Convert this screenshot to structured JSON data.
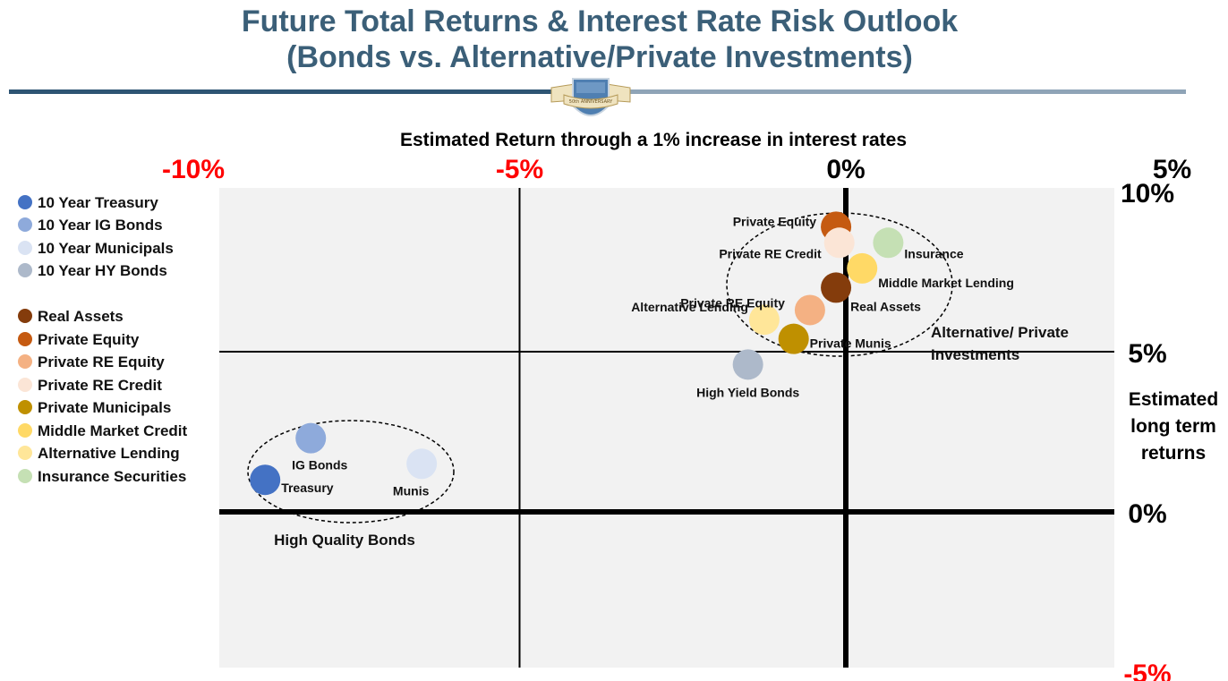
{
  "header": {
    "title_line1": "Future Total Returns & Interest Rate Risk Outlook",
    "title_line2": "(Bonds vs. Alternative/Private Investments)",
    "badge_text": "50th ANNIVERSARY"
  },
  "colors": {
    "title": "#3b5f78",
    "rule_dark": "#2e5573",
    "rule_light": "#8fa4b7",
    "x_tick_negative": "#ff0000",
    "plot_background": "#f2f2f2"
  },
  "legend": [
    {
      "label": "10 Year Treasury",
      "color": "#4472c4"
    },
    {
      "label": "10 Year IG Bonds",
      "color": "#8eaadb"
    },
    {
      "label": "10 Year Municipals",
      "color": "#dae3f3"
    },
    {
      "label": "10 Year HY Bonds",
      "color": "#adb9ca"
    },
    {
      "label": "Real Assets",
      "color": "#843c0c"
    },
    {
      "label": "Private Equity",
      "color": "#c55a11"
    },
    {
      "label": "Private RE Equity",
      "color": "#f4b183"
    },
    {
      "label": "Private RE Credit",
      "color": "#fbe5d6"
    },
    {
      "label": "Private Municipals",
      "color": "#bf9000"
    },
    {
      "label": "Middle Market Credit",
      "color": "#ffd966"
    },
    {
      "label": "Alternative Lending",
      "color": "#ffe699"
    },
    {
      "label": "Insurance Securities",
      "color": "#c5e0b4"
    }
  ],
  "side_label": [
    "Estimated",
    "long term",
    "returns"
  ],
  "chart_data": {
    "type": "scatter",
    "title": "Future Total Returns & Interest Rate Risk Outlook (Bonds vs. Alternative/Private Investments)",
    "xlabel": "Estimated Return through a 1% increase in interest rates",
    "ylabel": "Estimated long term returns",
    "xlim": [
      -9.6,
      4.3
    ],
    "ylim": [
      -5.0,
      10.0
    ],
    "x_ticks": [
      {
        "value": -10,
        "label": "-10%"
      },
      {
        "value": -5,
        "label": "-5%"
      },
      {
        "value": 0,
        "label": "0%"
      },
      {
        "value": 5,
        "label": "5%"
      }
    ],
    "y_ticks": [
      {
        "value": 10,
        "label": "10%"
      },
      {
        "value": 5,
        "label": "5%"
      },
      {
        "value": 0,
        "label": "0%"
      },
      {
        "value": -5,
        "label": "-5%"
      }
    ],
    "grid": true,
    "legend_position": "left",
    "points": [
      {
        "label": "Treasury",
        "series": "10 Year Treasury",
        "x": -8.9,
        "y": 1.0,
        "color": "#4472c4"
      },
      {
        "label": "IG Bonds",
        "series": "10 Year IG Bonds",
        "x": -8.2,
        "y": 2.3,
        "color": "#8eaadb"
      },
      {
        "label": "Munis",
        "series": "10 Year Municipals",
        "x": -6.5,
        "y": 1.5,
        "color": "#dae3f3"
      },
      {
        "label": "High Yield Bonds",
        "series": "10 Year HY Bonds",
        "x": -1.5,
        "y": 4.6,
        "color": "#adb9ca"
      },
      {
        "label": "Private Equity",
        "series": "Private Equity",
        "x": -0.15,
        "y": 8.9,
        "color": "#c55a11"
      },
      {
        "label": "Private RE Credit",
        "series": "Private RE Credit",
        "x": -0.1,
        "y": 8.4,
        "color": "#fbe5d6"
      },
      {
        "label": "Insurance",
        "series": "Insurance Securities",
        "x": 0.65,
        "y": 8.4,
        "color": "#c5e0b4"
      },
      {
        "label": "Middle Market Lending",
        "series": "Middle Market Credit",
        "x": 0.25,
        "y": 7.6,
        "color": "#ffd966"
      },
      {
        "label": "Real Assets",
        "series": "Real Assets",
        "x": -0.15,
        "y": 7.0,
        "color": "#843c0c"
      },
      {
        "label": "Private RE Equity",
        "series": "Private RE Equity",
        "x": -0.55,
        "y": 6.3,
        "color": "#f4b183"
      },
      {
        "label": "Alternative Lending",
        "series": "Alternative Lending",
        "x": -1.25,
        "y": 6.0,
        "color": "#ffe699"
      },
      {
        "label": "Private Munis",
        "series": "Private Municipals",
        "x": -0.8,
        "y": 5.4,
        "color": "#bf9000"
      }
    ],
    "annotations": [
      {
        "text": "Alternative/ Private Investments"
      },
      {
        "text": "High Quality Bonds"
      }
    ]
  }
}
